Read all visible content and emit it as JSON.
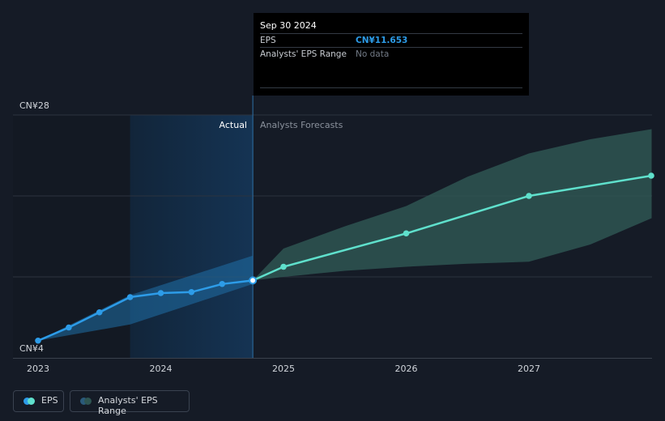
{
  "chart_data": {
    "type": "line",
    "currency": "CN¥",
    "y_tick_labels": [
      "CN¥28",
      "CN¥4"
    ],
    "ylim": [
      4,
      28
    ],
    "x_tick_labels": [
      "2023",
      "2024",
      "2025",
      "2026",
      "2027"
    ],
    "region_labels": {
      "actual": "Actual",
      "forecast": "Analysts Forecasts"
    },
    "series": [
      {
        "name": "EPS",
        "kind": "actual",
        "points": [
          {
            "x": 2023.0,
            "y": 5.7
          },
          {
            "x": 2023.25,
            "y": 7.0
          },
          {
            "x": 2023.5,
            "y": 8.5
          },
          {
            "x": 2023.75,
            "y": 10.0
          },
          {
            "x": 2024.0,
            "y": 10.4
          },
          {
            "x": 2024.25,
            "y": 10.5
          },
          {
            "x": 2024.5,
            "y": 11.3
          },
          {
            "x": 2024.75,
            "y": 11.65
          }
        ]
      },
      {
        "name": "EPS forecast",
        "kind": "forecast",
        "points": [
          {
            "x": 2024.75,
            "y": 11.65
          },
          {
            "x": 2025.0,
            "y": 13.0
          },
          {
            "x": 2026.0,
            "y": 16.3
          },
          {
            "x": 2027.0,
            "y": 20.0
          },
          {
            "x": 2028.0,
            "y": 22.0
          }
        ]
      }
    ],
    "analyst_range": {
      "name": "Analysts' EPS Range",
      "points": [
        {
          "x": 2024.75,
          "low": 11.65,
          "high": 11.65
        },
        {
          "x": 2025.0,
          "low": 12.0,
          "high": 14.8
        },
        {
          "x": 2025.5,
          "low": 12.6,
          "high": 17.0
        },
        {
          "x": 2026.0,
          "low": 13.0,
          "high": 19.0
        },
        {
          "x": 2026.5,
          "low": 13.3,
          "high": 21.9
        },
        {
          "x": 2027.0,
          "low": 13.5,
          "high": 24.2
        },
        {
          "x": 2027.5,
          "low": 15.2,
          "high": 25.6
        },
        {
          "x": 2028.0,
          "low": 17.8,
          "high": 26.6
        }
      ]
    },
    "actual_band": {
      "points": [
        {
          "x": 2023.0,
          "low": 5.7,
          "high": 5.7
        },
        {
          "x": 2023.75,
          "low": 7.3,
          "high": 10.2
        },
        {
          "x": 2024.75,
          "low": 11.3,
          "high": 14.1
        }
      ]
    },
    "highlight_x": 2024.75,
    "grid": true,
    "legend_position": "bottom-left"
  },
  "tooltip": {
    "date": "Sep 30 2024",
    "rows": [
      {
        "label": "EPS",
        "value": "CN¥11.653"
      },
      {
        "label": "Analysts' EPS Range",
        "value": "No data"
      }
    ]
  },
  "legend": [
    {
      "label": "EPS"
    },
    {
      "label": "Analysts' EPS Range"
    }
  ],
  "colors": {
    "background": "#151b26",
    "eps_line": "#2d9ce8",
    "forecast_line": "#5fe0cc",
    "range_fill": "#2e5552",
    "actual_band": "#1f6fa8",
    "grid": "#2c333f",
    "axis_text": "#d0d4da",
    "tooltip_accent": "#2d9ce8",
    "tooltip_muted": "#737b87"
  }
}
